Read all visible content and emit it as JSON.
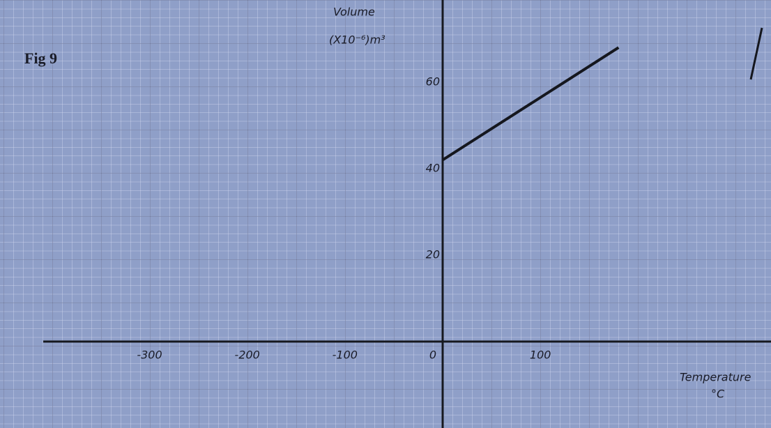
{
  "chart_data": {
    "type": "line",
    "title": "Fig 9",
    "y_label": [
      "Volume",
      "(X10⁻⁶)m³"
    ],
    "x_label": [
      "Temperature",
      "°C"
    ],
    "x": [
      0,
      180
    ],
    "series": [
      {
        "color": "#15171e",
        "values": [
          42,
          68
        ]
      }
    ],
    "xlim": [
      -453,
      336
    ],
    "ylim": [
      -20,
      79
    ],
    "xticks": [
      -300,
      -200,
      -100,
      0,
      100
    ],
    "yticks": [
      20,
      40,
      60
    ],
    "grid": false
  }
}
